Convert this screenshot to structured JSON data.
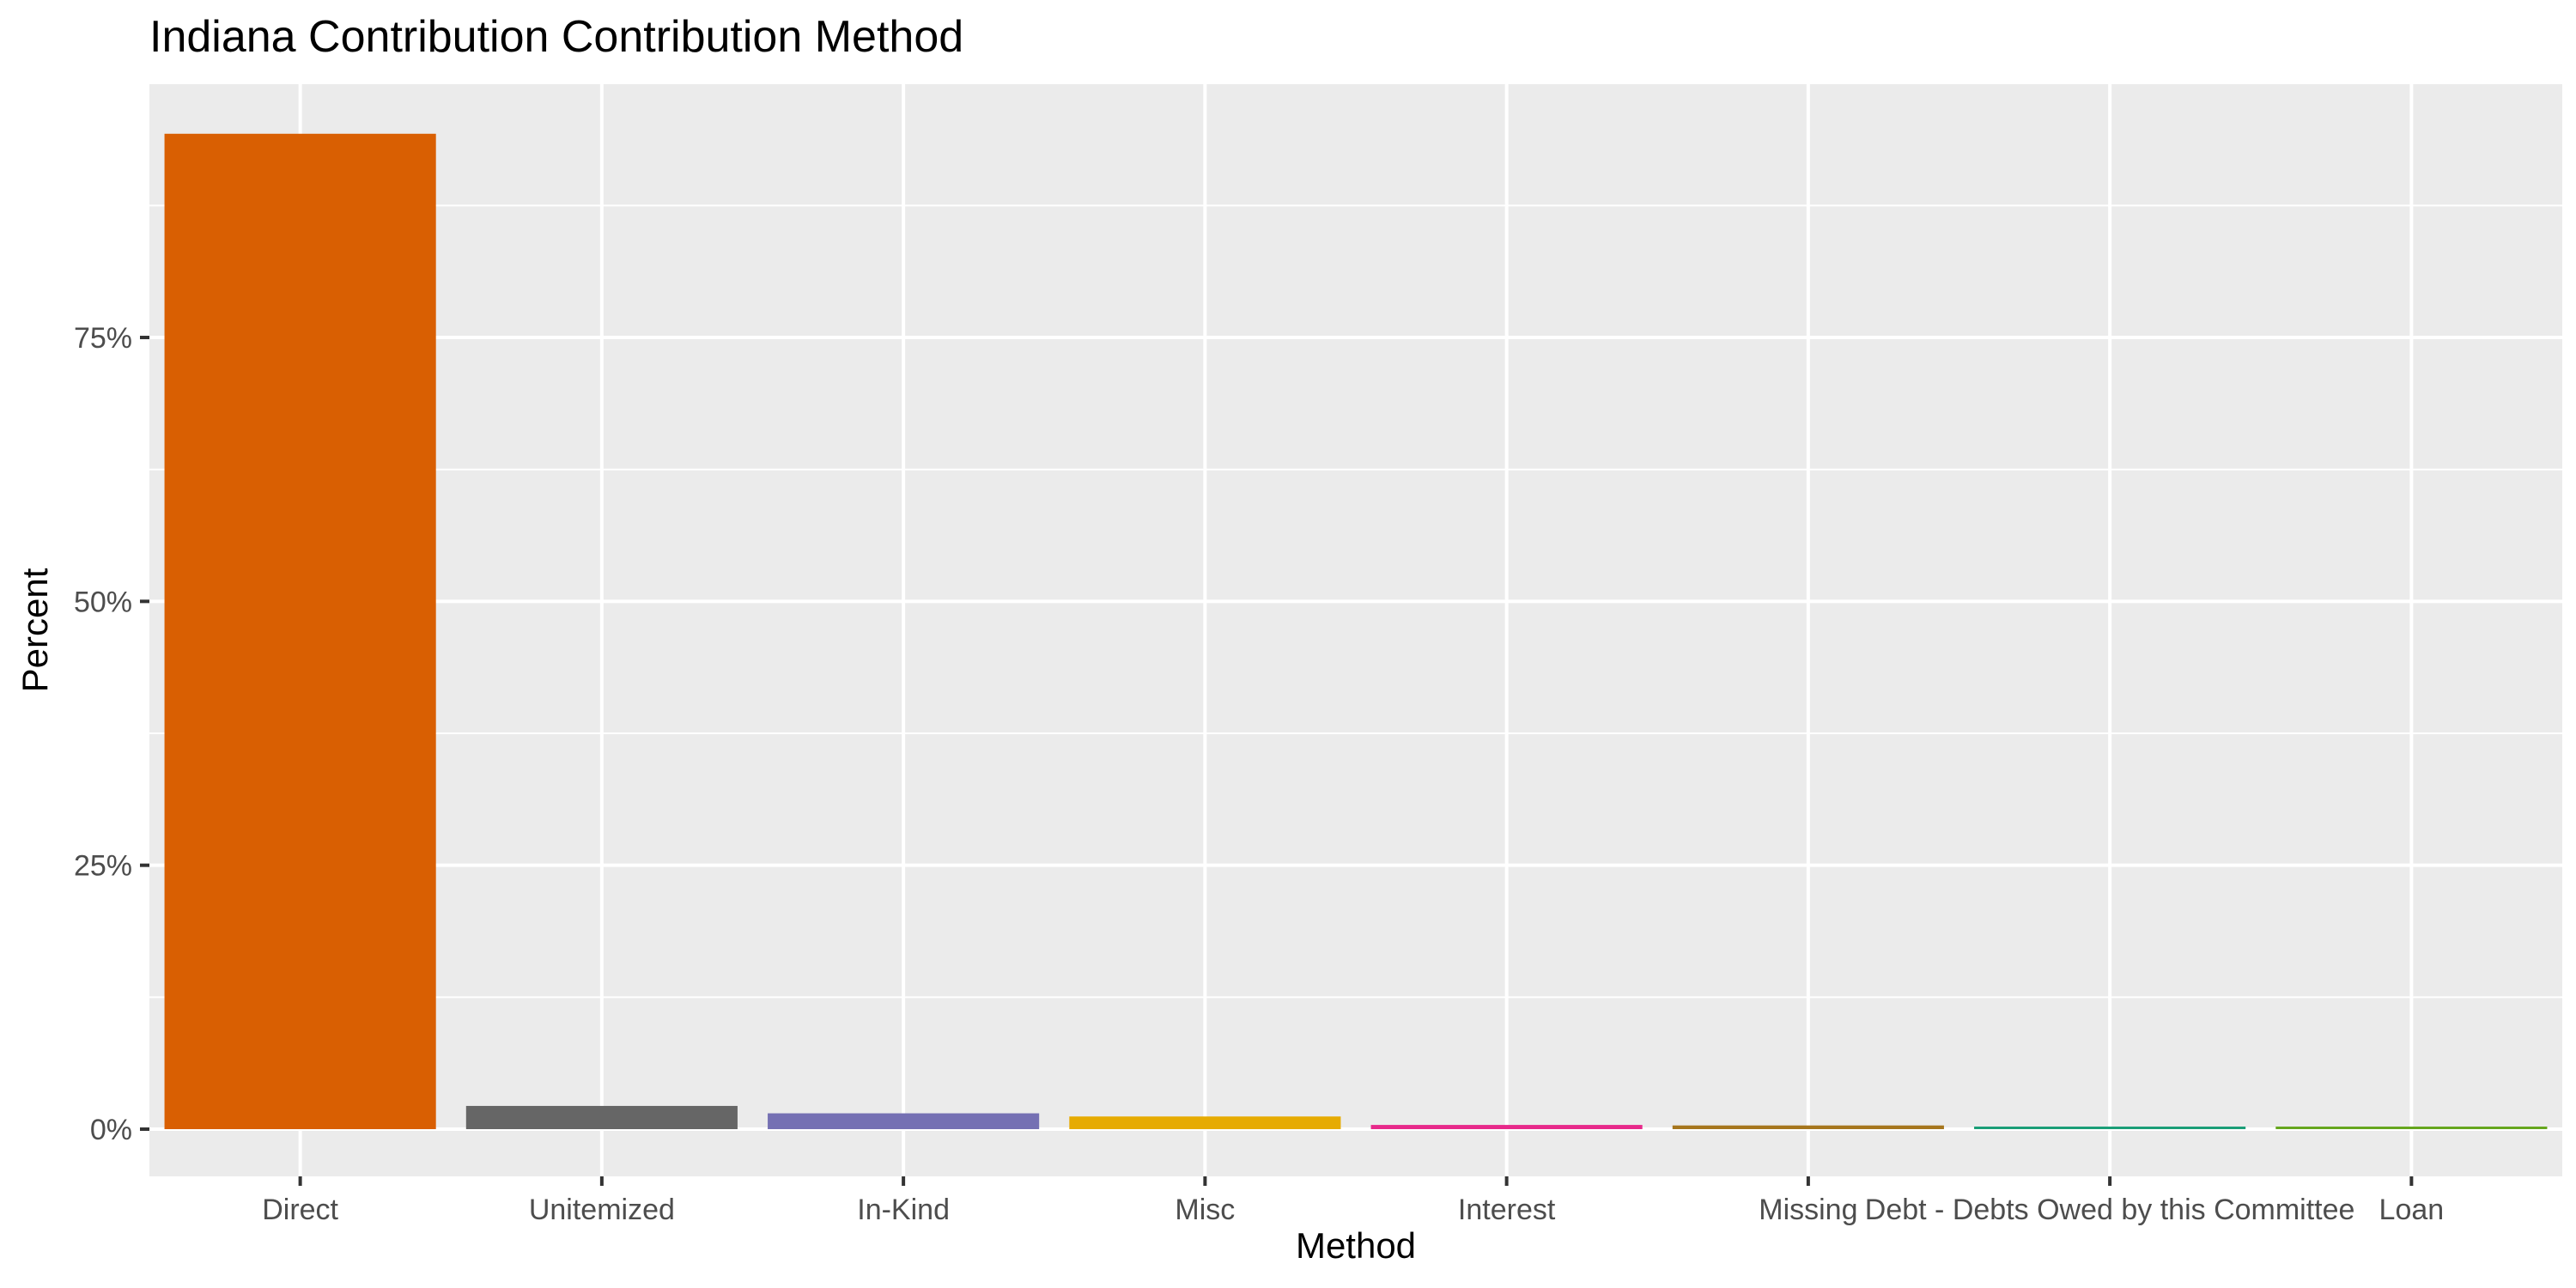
{
  "chart_data": {
    "type": "bar",
    "title": "Indiana Contribution Contribution Method",
    "xlabel": "Method",
    "ylabel": "Percent",
    "categories": [
      "Direct",
      "Unitemized",
      "In-Kind",
      "Misc",
      "Interest",
      "Missing",
      "Debt - Debts Owed by this Committee",
      "Loan"
    ],
    "values": [
      94.3,
      2.2,
      1.5,
      1.2,
      0.4,
      0.35,
      0.2,
      0.1
    ],
    "colors": [
      "#d95f02",
      "#666666",
      "#7570b3",
      "#e6ab02",
      "#e7298a",
      "#a6761d",
      "#1b9e77",
      "#66a61e"
    ],
    "ylim": [
      0,
      99
    ],
    "yticks": [
      0,
      25,
      50,
      75
    ],
    "ytick_labels": [
      "0%",
      "25%",
      "50%",
      "75%"
    ],
    "grid": true,
    "legend": "none"
  }
}
